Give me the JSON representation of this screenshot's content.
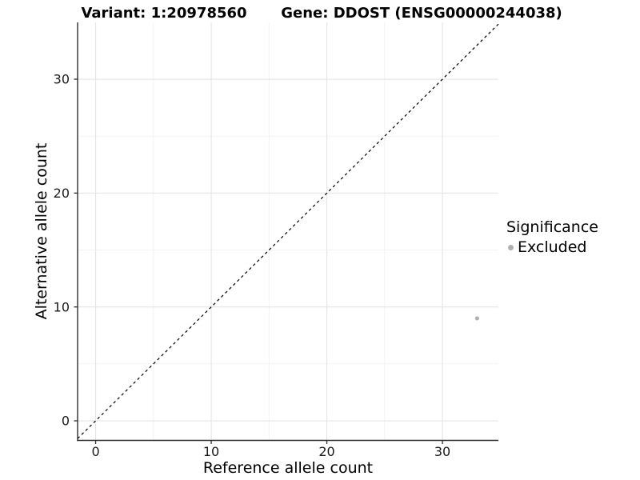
{
  "header": {
    "variant_title": "Variant: 1:20978560",
    "gene_title": "Gene: DDOST (ENSG00000244038)"
  },
  "chart_data": {
    "type": "scatter",
    "title_left": "Variant: 1:20978560",
    "title_right": "Gene: DDOST (ENSG00000244038)",
    "xlabel": "Reference allele count",
    "ylabel": "Alternative allele count",
    "xlim": [
      -1.56,
      34.84
    ],
    "ylim": [
      -1.72,
      34.99
    ],
    "x_ticks": [
      0,
      10,
      20,
      30
    ],
    "y_ticks": [
      0,
      10,
      20,
      30
    ],
    "x_minor_ticks": [
      5,
      15,
      25
    ],
    "y_minor_ticks": [
      5,
      15,
      25
    ],
    "grid": "major and minor gridlines on white background",
    "points": [
      {
        "x": 33,
        "y": 9,
        "series": "Excluded"
      }
    ],
    "identity_line": {
      "slope": 1,
      "intercept": 0,
      "style": "dashed",
      "color": "#000000"
    },
    "legend": {
      "title": "Significance",
      "position": "right",
      "items": [
        {
          "label": "Excluded",
          "color": "#b0b0b0"
        }
      ]
    },
    "colors": {
      "point": "#b0b0b0",
      "axis_line": "#2e2e2e",
      "tick_label": "#1a1a1a",
      "grid_major": "#e4e4e4",
      "grid_minor": "#f1f1f1"
    }
  }
}
